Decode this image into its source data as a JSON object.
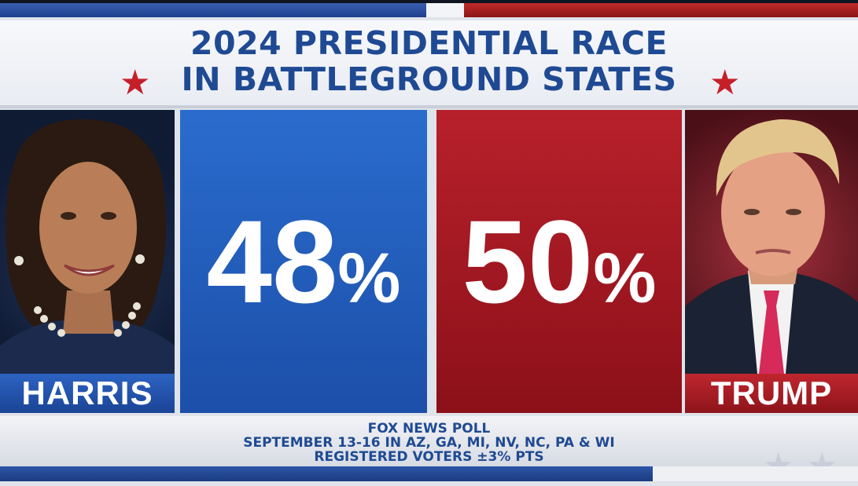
{
  "header": {
    "title_line1": "2024 PRESIDENTIAL RACE",
    "title_line2": "IN BATTLEGROUND STATES"
  },
  "candidates": [
    {
      "name": "HARRIS",
      "percent": "48",
      "percent_value": 48,
      "color": "#1f5bbd"
    },
    {
      "name": "TRUMP",
      "percent": "50",
      "percent_value": 50,
      "color": "#a8141e"
    }
  ],
  "percent_symbol": "%",
  "footer": {
    "line1": "FOX NEWS POLL",
    "line2": "SEPTEMBER 13-16 IN AZ, GA, MI, NV, NC, PA & WI",
    "line3": "REGISTERED VOTERS ±3% PTS"
  },
  "colors": {
    "accent_blue": "#1f4a93",
    "star_red": "#c5202a"
  }
}
